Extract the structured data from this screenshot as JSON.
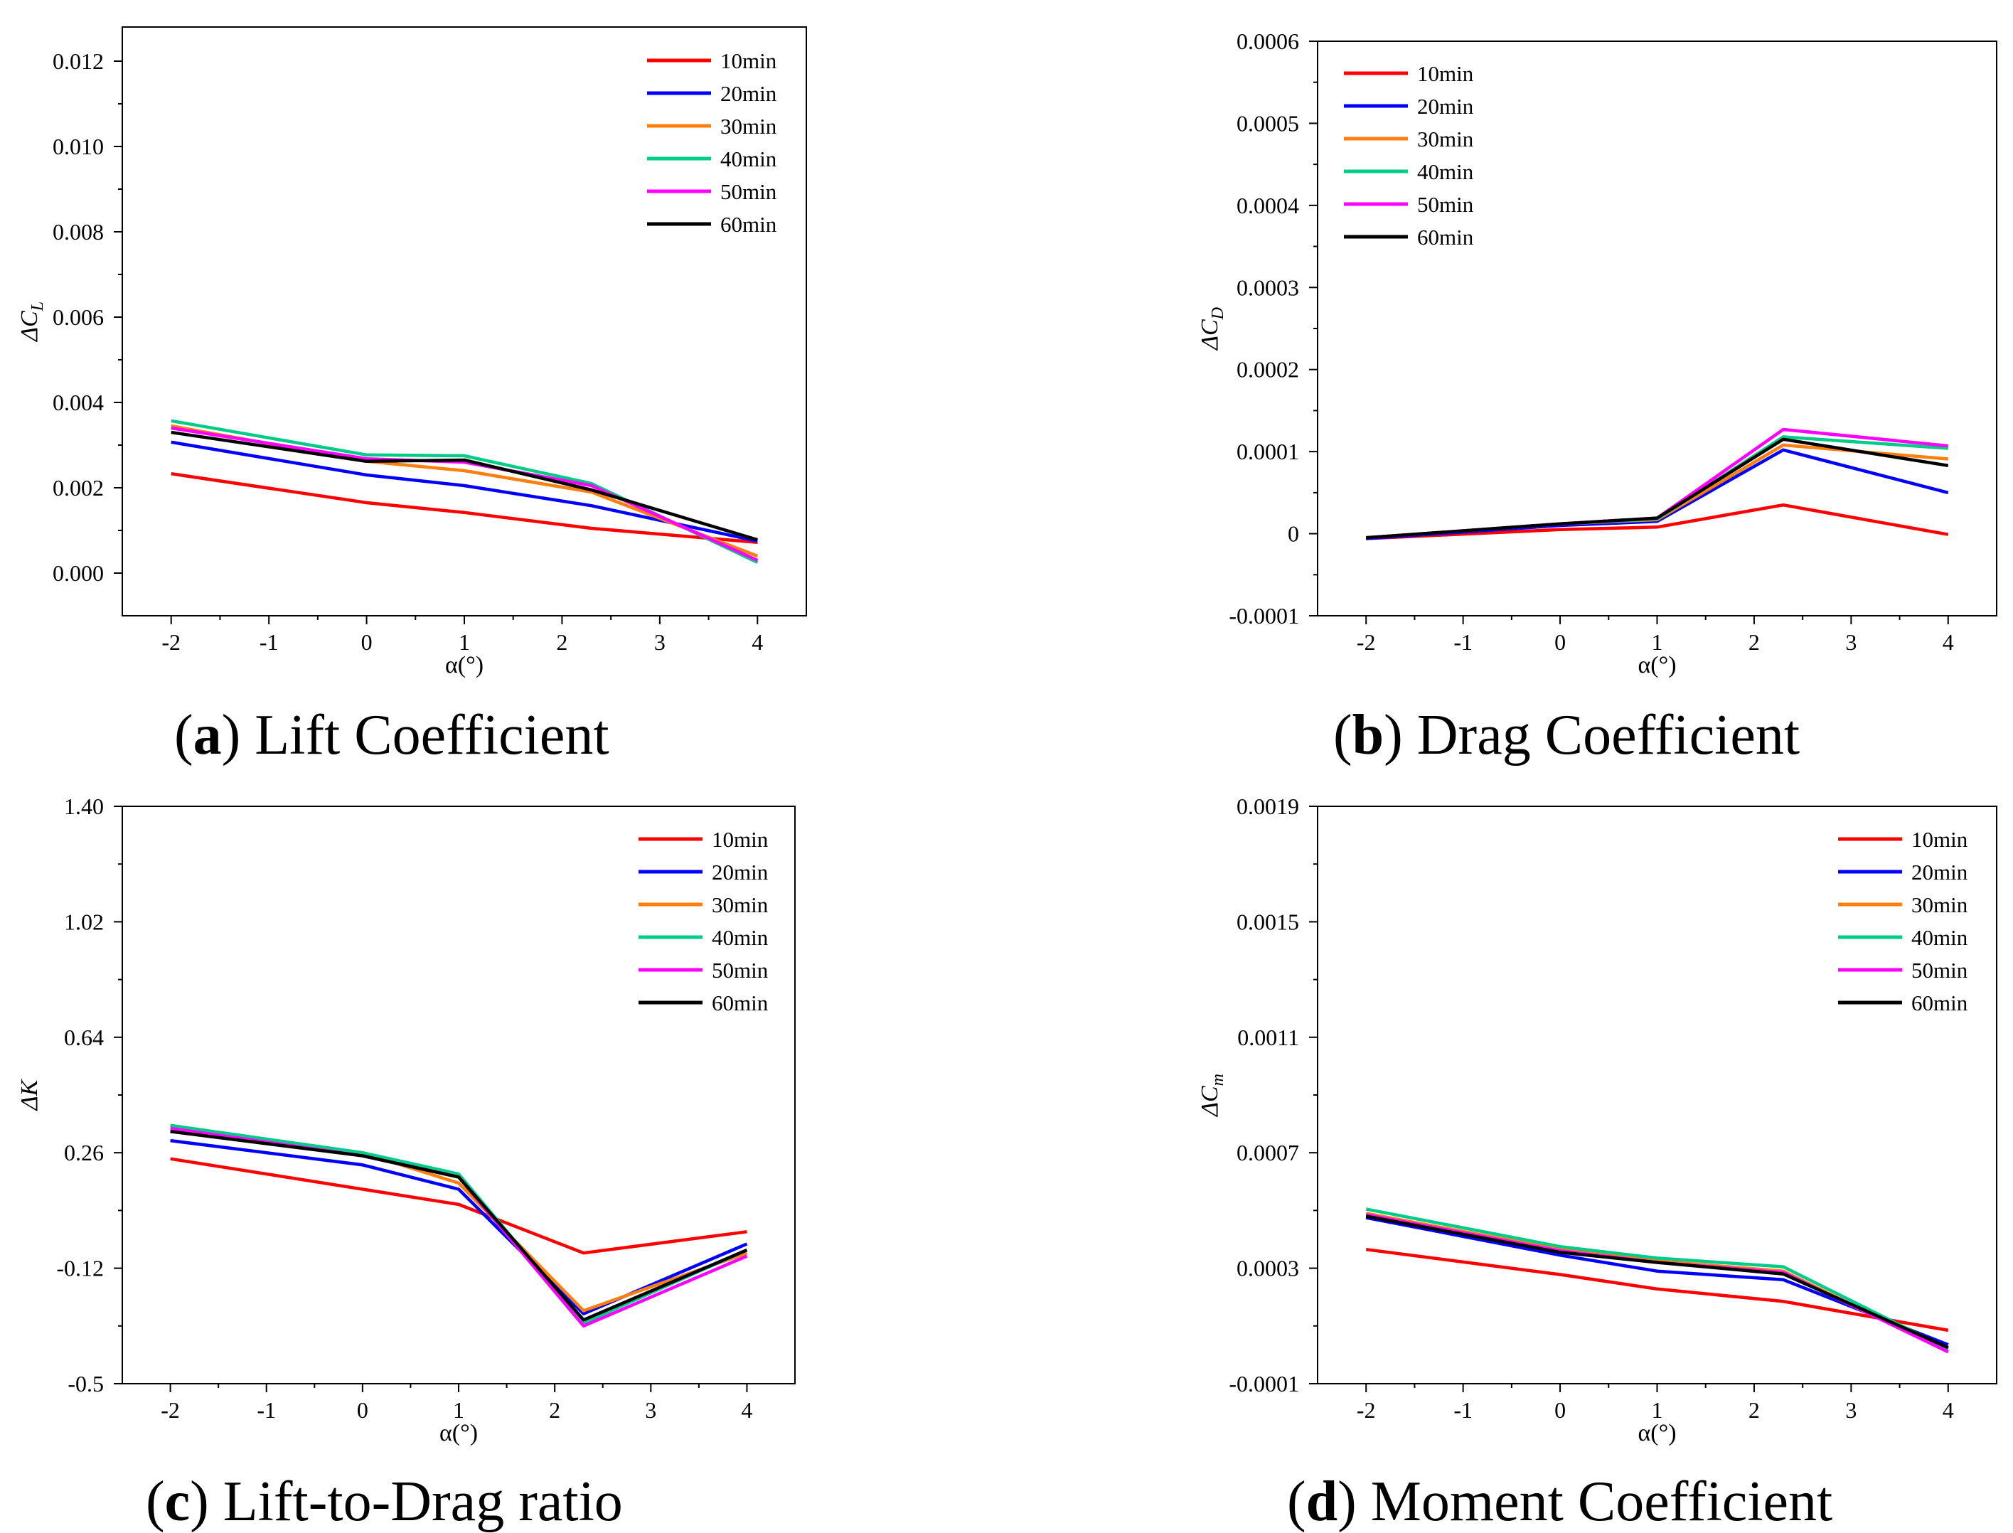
{
  "figure": {
    "series_colors": {
      "10min": "#ff0000",
      "20min": "#0000ff",
      "30min": "#ff7f0e",
      "40min": "#00cc88",
      "50min": "#ff00ff",
      "60min": "#000000"
    }
  },
  "chart_data": [
    {
      "id": "a",
      "type": "line",
      "caption_letter": "a",
      "caption_text": "Lift Coefficient",
      "xlabel": "α(°)",
      "ylabel_main": "ΔC",
      "ylabel_sub": "L",
      "xlim": [
        -2.5,
        4.5
      ],
      "ylim": [
        -0.001,
        0.0128
      ],
      "xticks": [
        -2,
        -1,
        0,
        1,
        2,
        3,
        4
      ],
      "xtick_labels": [
        "-2",
        "-1",
        "0",
        "1",
        "2",
        "3",
        "4"
      ],
      "yticks": [
        0,
        0.002,
        0.004,
        0.006,
        0.008,
        0.01,
        0.012
      ],
      "ytick_labels": [
        "0.000",
        "0.002",
        "0.004",
        "0.006",
        "0.008",
        "0.010",
        "0.012"
      ],
      "legend_position": "top-right",
      "x": [
        -2,
        0,
        1,
        2.3,
        4
      ],
      "series": [
        {
          "name": "10min",
          "values": [
            0.00233,
            0.00165,
            0.00142,
            0.00105,
            0.00072
          ]
        },
        {
          "name": "20min",
          "values": [
            0.00307,
            0.0023,
            0.00205,
            0.00158,
            0.00075
          ]
        },
        {
          "name": "30min",
          "values": [
            0.00345,
            0.00262,
            0.0024,
            0.0019,
            0.0004
          ]
        },
        {
          "name": "40min",
          "values": [
            0.00357,
            0.00277,
            0.00275,
            0.0021,
            0.00025
          ]
        },
        {
          "name": "50min",
          "values": [
            0.0034,
            0.00268,
            0.0026,
            0.00205,
            0.0003
          ]
        },
        {
          "name": "60min",
          "values": [
            0.0033,
            0.00262,
            0.00265,
            0.00195,
            0.00078
          ]
        }
      ]
    },
    {
      "id": "b",
      "type": "line",
      "caption_letter": "b",
      "caption_text": "Drag Coefficient",
      "xlabel": "α(°)",
      "ylabel_main": "ΔC",
      "ylabel_sub": "D",
      "xlim": [
        -2.5,
        4.5
      ],
      "ylim": [
        -0.0001,
        0.0006
      ],
      "xticks": [
        -2,
        -1,
        0,
        1,
        2,
        3,
        4
      ],
      "xtick_labels": [
        "-2",
        "-1",
        "0",
        "1",
        "2",
        "3",
        "4"
      ],
      "yticks": [
        -0.0001,
        0,
        0.0001,
        0.0002,
        0.0003,
        0.0004,
        0.0005,
        0.0006
      ],
      "ytick_labels": [
        "-0.0001",
        "0",
        "0.0001",
        "0.0002",
        "0.0003",
        "0.0004",
        "0.0005",
        "0.0006"
      ],
      "legend_position": "top-left",
      "x": [
        -2,
        0,
        1,
        2.3,
        4
      ],
      "series": [
        {
          "name": "10min",
          "values": [
            -6e-06,
            5e-06,
            8e-06,
            3.5e-05,
            -1e-06
          ]
        },
        {
          "name": "20min",
          "values": [
            -6e-06,
            1e-05,
            1.5e-05,
            0.000102,
            5e-05
          ]
        },
        {
          "name": "30min",
          "values": [
            -5e-06,
            1.2e-05,
            1.7e-05,
            0.000108,
            9.1e-05
          ]
        },
        {
          "name": "40min",
          "values": [
            -5e-06,
            1.2e-05,
            1.8e-05,
            0.000118,
            0.000104
          ]
        },
        {
          "name": "50min",
          "values": [
            -5e-06,
            1.2e-05,
            1.9e-05,
            0.000127,
            0.000107
          ]
        },
        {
          "name": "60min",
          "values": [
            -5e-06,
            1.2e-05,
            1.9e-05,
            0.000115,
            8.3e-05
          ]
        }
      ]
    },
    {
      "id": "c",
      "type": "line",
      "caption_letter": "c",
      "caption_text": "Lift-to-Drag ratio",
      "xlabel": "α(°)",
      "ylabel_main": "ΔK",
      "ylabel_sub": "",
      "xlim": [
        -2.5,
        4.5
      ],
      "ylim": [
        -0.5,
        1.4
      ],
      "xticks": [
        -2,
        -1,
        0,
        1,
        2,
        3,
        4
      ],
      "xtick_labels": [
        "-2",
        "-1",
        "0",
        "1",
        "2",
        "3",
        "4"
      ],
      "yticks": [
        -0.5,
        -0.12,
        0.26,
        0.64,
        1.02,
        1.4
      ],
      "ytick_labels": [
        "-0.5",
        "-0.12",
        "0.26",
        "0.64",
        "1.02",
        "1.40"
      ],
      "legend_position": "top-right",
      "x": [
        -2,
        0,
        1,
        2.3,
        4
      ],
      "series": [
        {
          "name": "10min",
          "values": [
            0.24,
            0.14,
            0.09,
            -0.07,
            0.0
          ]
        },
        {
          "name": "20min",
          "values": [
            0.3,
            0.22,
            0.14,
            -0.27,
            -0.04
          ]
        },
        {
          "name": "30min",
          "values": [
            0.33,
            0.26,
            0.16,
            -0.26,
            -0.07
          ]
        },
        {
          "name": "40min",
          "values": [
            0.35,
            0.26,
            0.19,
            -0.3,
            -0.06
          ]
        },
        {
          "name": "50min",
          "values": [
            0.34,
            0.25,
            0.18,
            -0.31,
            -0.08
          ]
        },
        {
          "name": "60min",
          "values": [
            0.33,
            0.25,
            0.18,
            -0.29,
            -0.06
          ]
        }
      ]
    },
    {
      "id": "d",
      "type": "line",
      "caption_letter": "d",
      "caption_text": "Moment Coefficient",
      "xlabel": "α(°)",
      "ylabel_main": "ΔC",
      "ylabel_sub": "m",
      "xlim": [
        -2.5,
        4.5
      ],
      "ylim": [
        -0.0001,
        0.0019
      ],
      "xticks": [
        -2,
        -1,
        0,
        1,
        2,
        3,
        4
      ],
      "xtick_labels": [
        "-2",
        "-1",
        "0",
        "1",
        "2",
        "3",
        "4"
      ],
      "yticks": [
        -0.0001,
        0.0003,
        0.0007,
        0.0011,
        0.0015,
        0.0019
      ],
      "ytick_labels": [
        "-0.0001",
        "0.0003",
        "0.0007",
        "0.0011",
        "0.0015",
        "0.0019"
      ],
      "legend_position": "top-right",
      "x": [
        -2,
        0,
        1,
        2.3,
        4
      ],
      "series": [
        {
          "name": "10min",
          "values": [
            0.000365,
            0.000278,
            0.000228,
            0.000185,
            8.5e-05
          ]
        },
        {
          "name": "20min",
          "values": [
            0.000475,
            0.000345,
            0.00029,
            0.00026,
            3.5e-05
          ]
        },
        {
          "name": "30min",
          "values": [
            0.00049,
            0.000365,
            0.000325,
            0.00029,
            1e-05
          ]
        },
        {
          "name": "40min",
          "values": [
            0.000505,
            0.000375,
            0.000335,
            0.000305,
            2e-05
          ]
        },
        {
          "name": "50min",
          "values": [
            0.000485,
            0.00036,
            0.00032,
            0.000285,
            1e-05
          ]
        },
        {
          "name": "60min",
          "values": [
            0.00048,
            0.000355,
            0.00032,
            0.00028,
            2.5e-05
          ]
        }
      ]
    }
  ]
}
